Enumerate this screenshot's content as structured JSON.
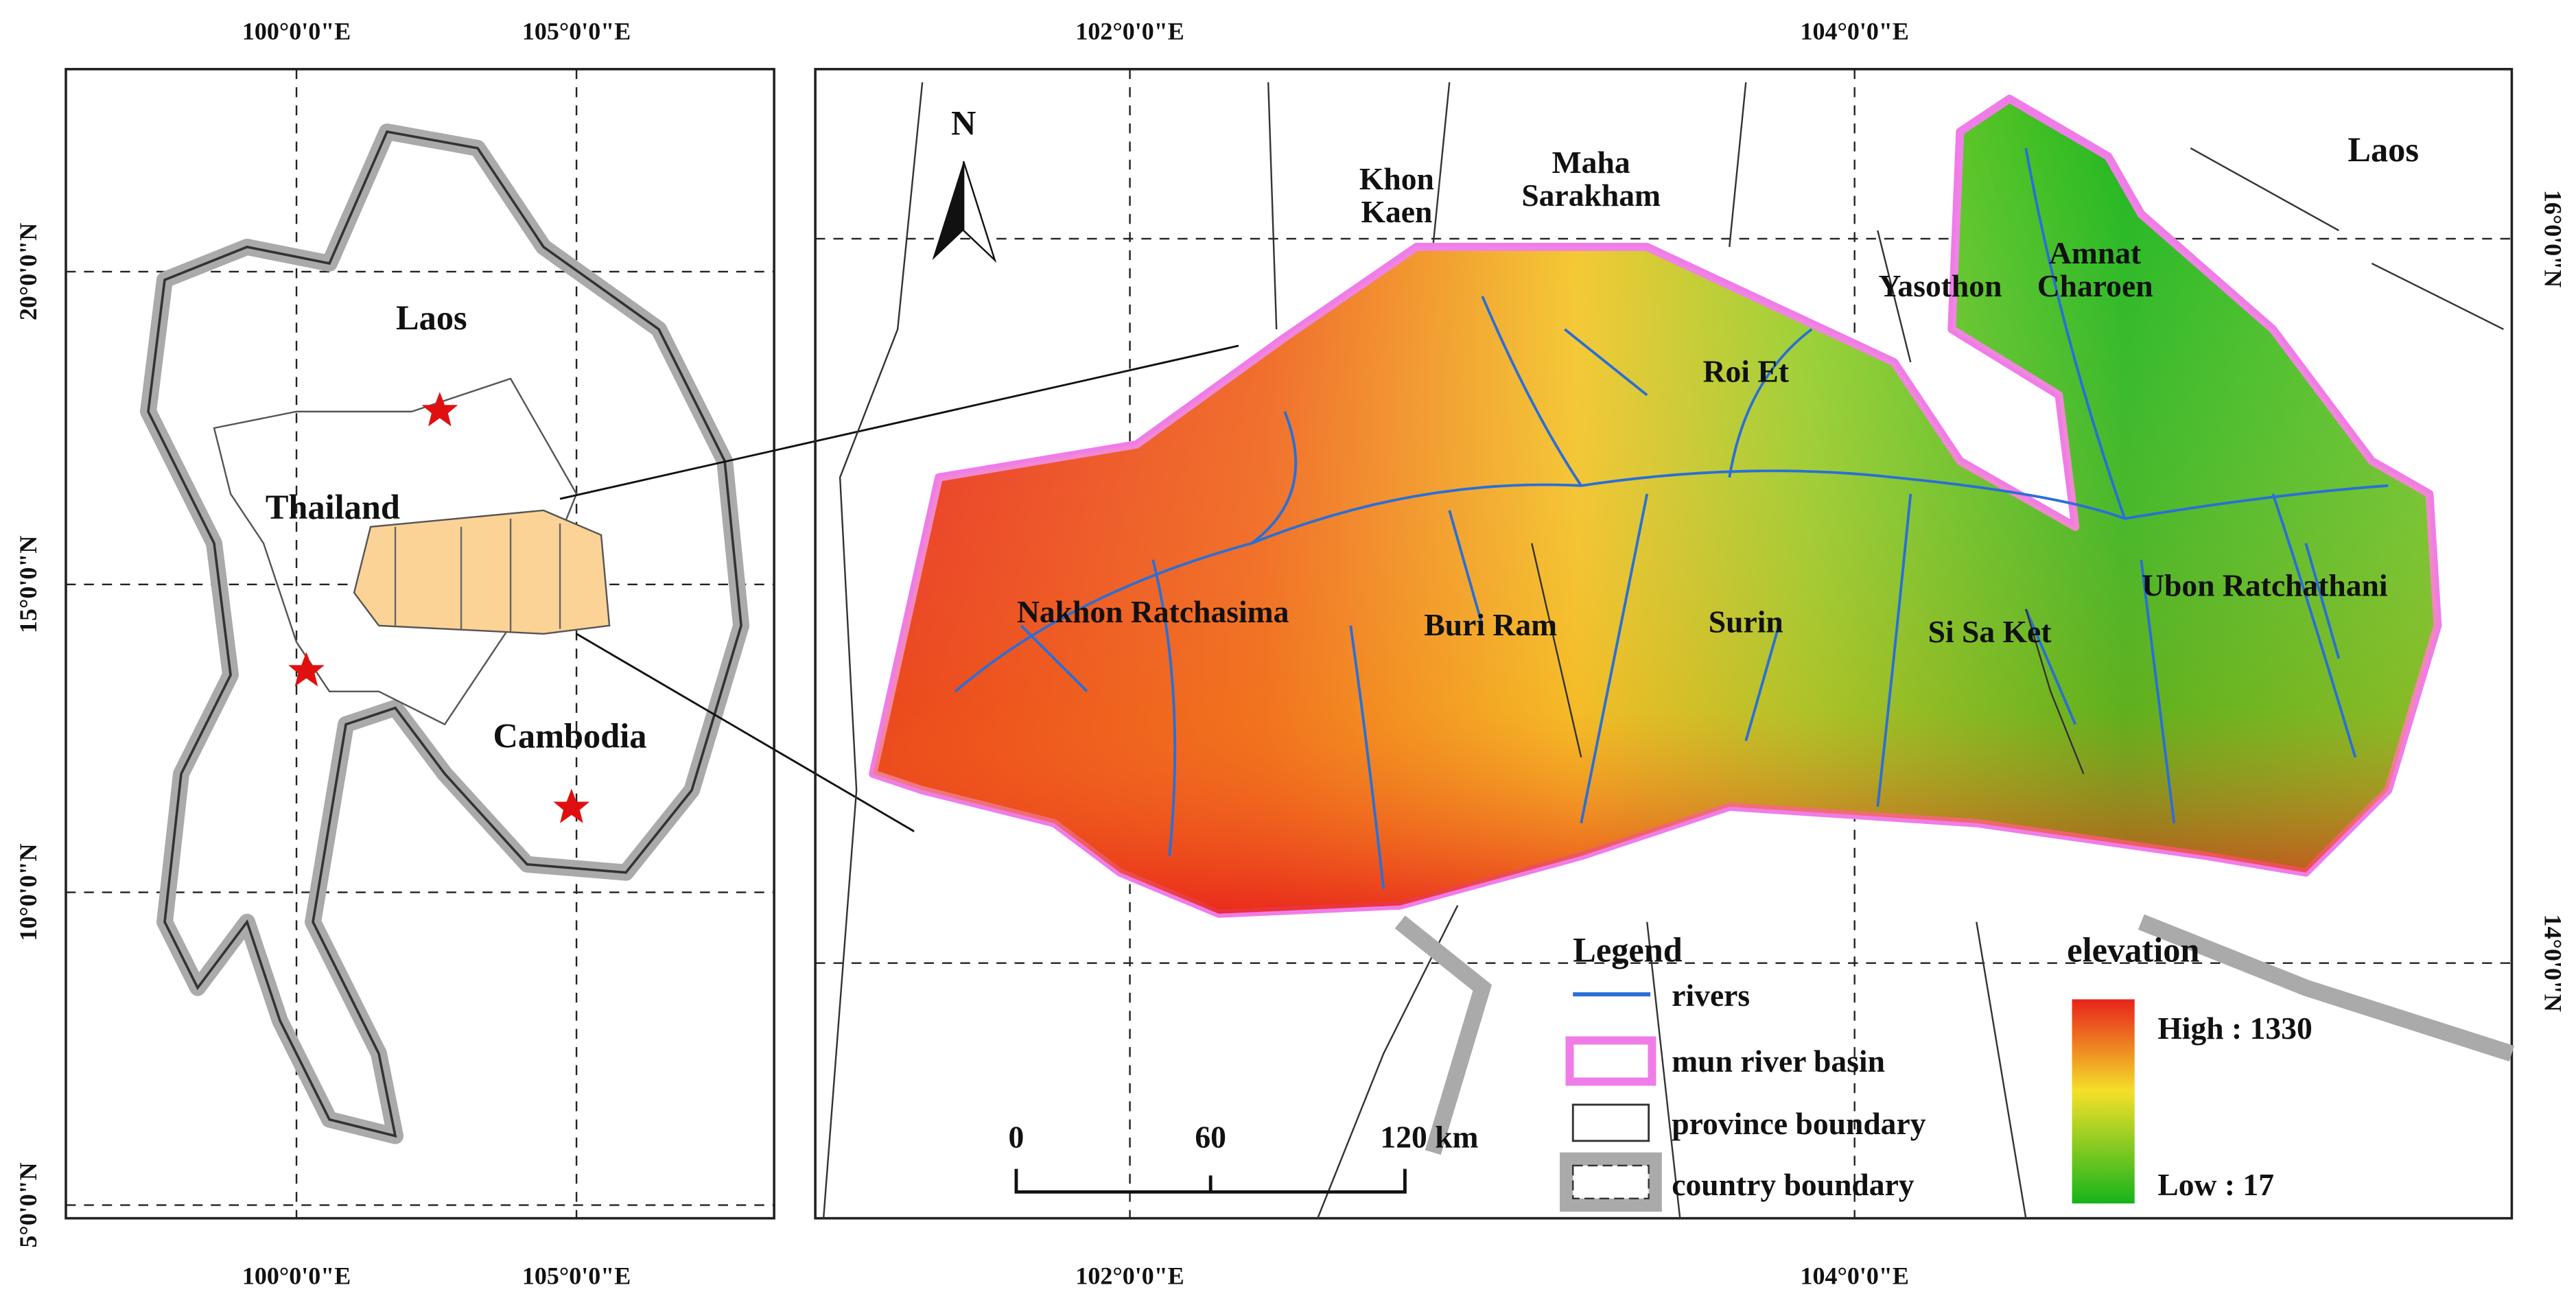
{
  "overview_map": {
    "lon_labels": [
      "100°0'0\"E",
      "105°0'0\"E"
    ],
    "lat_labels": [
      "20°0'0\"N",
      "15°0'0\"N",
      "10°0'0\"N",
      "5°0'0\"N"
    ],
    "places": [
      "Laos",
      "Thailand",
      "Cambodia"
    ]
  },
  "basin_map": {
    "lon_labels": [
      "102°0'0\"E",
      "104°0'0\"E"
    ],
    "lat_labels": [
      "16°0'0\"N",
      "14°0'0\"N"
    ],
    "north": "N",
    "country": "Laos",
    "provinces": [
      [
        "Khon",
        "Kaen"
      ],
      [
        "Maha",
        "Sarakham"
      ],
      [
        "Yasothon"
      ],
      [
        "Amnat",
        "Charoen"
      ],
      [
        "Roi Et"
      ],
      [
        "Nakhon Ratchasima"
      ],
      [
        "Buri Ram"
      ],
      [
        "Surin"
      ],
      [
        "Si Sa Ket"
      ],
      [
        "Ubon Ratchathani"
      ]
    ]
  },
  "legend": {
    "title": "Legend",
    "items": [
      "rivers",
      "mun river basin",
      "province boundary",
      "country boundary"
    ]
  },
  "elevation": {
    "title": "elevation",
    "high": "High : 1330",
    "low": "Low : 17"
  },
  "scale_bar": {
    "labels": [
      "0",
      "60",
      "120 km"
    ]
  }
}
